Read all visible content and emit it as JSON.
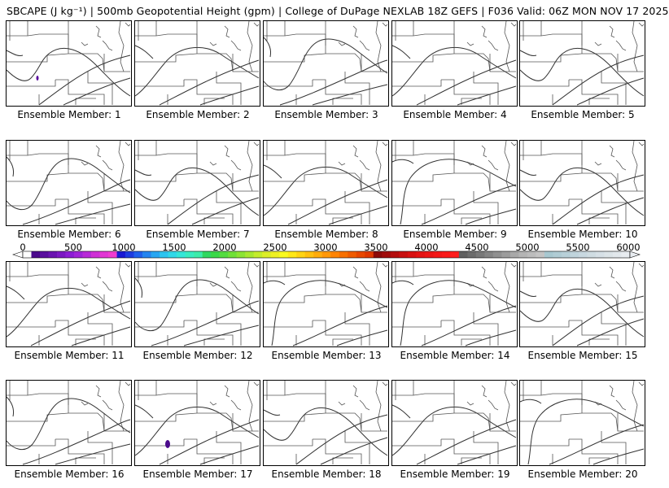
{
  "header": {
    "title": "SBCAPE (J kg⁻¹) | 500mb Geopotential Height (gpm) | College of DuPage NEXLAB 18Z GEFS | F036 Valid: 06Z MON NOV 17 2025"
  },
  "colorbar": {
    "ticks": [
      "0",
      "500",
      "1000",
      "1500",
      "2000",
      "2500",
      "3000",
      "3500",
      "4000",
      "4500",
      "5000",
      "5500",
      "6000"
    ],
    "colors": [
      "#ffffff",
      "#4b0a8c",
      "#5a0f9e",
      "#6a14b0",
      "#7b19c2",
      "#8c1ed4",
      "#a024d8",
      "#b82ad8",
      "#cf30d6",
      "#e236d4",
      "#f03cd0",
      "#1a1ad4",
      "#1e3ce0",
      "#2060ec",
      "#2484f0",
      "#28a6f2",
      "#2cc4f0",
      "#30d8e8",
      "#34e6d8",
      "#38ecc0",
      "#3cecaa",
      "#30d860",
      "#3ad848",
      "#54dc40",
      "#70e038",
      "#8ce434",
      "#a8e830",
      "#c4ec2c",
      "#dcee28",
      "#eef024",
      "#fafa20",
      "#ffe818",
      "#ffd414",
      "#ffc010",
      "#ffac0c",
      "#ff9808",
      "#ff8404",
      "#f87000",
      "#f05c00",
      "#e84800",
      "#e03800",
      "#8c0a0a",
      "#a00c0c",
      "#b40e0e",
      "#c81010",
      "#d81212",
      "#e41414",
      "#ec1616",
      "#f41818",
      "#fa1a1a",
      "#ff1c1c",
      "#606060",
      "#6c6c6c",
      "#787878",
      "#848484",
      "#909090",
      "#9c9c9c",
      "#a8a8a8",
      "#b4b4b4",
      "#bcbcbc",
      "#c4c4c4",
      "#a8c8d0",
      "#b0ccd4",
      "#b8d0d8",
      "#c0d4dc",
      "#c8d8e0",
      "#cfdce2",
      "#d6e0e6",
      "#dce4e8",
      "#e2e8ec",
      "#e8ecf0"
    ]
  },
  "members": [
    {
      "label": "Ensemble Member: 1",
      "variant": 0,
      "blob": "small"
    },
    {
      "label": "Ensemble Member: 2",
      "variant": 1,
      "blob": "none"
    },
    {
      "label": "Ensemble Member: 3",
      "variant": 2,
      "blob": "none"
    },
    {
      "label": "Ensemble Member: 4",
      "variant": 1,
      "blob": "none"
    },
    {
      "label": "Ensemble Member: 5",
      "variant": 0,
      "blob": "none"
    },
    {
      "label": "Ensemble Member: 6",
      "variant": 2,
      "blob": "none"
    },
    {
      "label": "Ensemble Member: 7",
      "variant": 0,
      "blob": "none"
    },
    {
      "label": "Ensemble Member: 8",
      "variant": 1,
      "blob": "none"
    },
    {
      "label": "Ensemble Member: 9",
      "variant": 3,
      "blob": "none"
    },
    {
      "label": "Ensemble Member: 10",
      "variant": 0,
      "blob": "none"
    },
    {
      "label": "Ensemble Member: 11",
      "variant": 1,
      "blob": "none"
    },
    {
      "label": "Ensemble Member: 12",
      "variant": 2,
      "blob": "none"
    },
    {
      "label": "Ensemble Member: 13",
      "variant": 3,
      "blob": "none"
    },
    {
      "label": "Ensemble Member: 14",
      "variant": 3,
      "blob": "none"
    },
    {
      "label": "Ensemble Member: 15",
      "variant": 0,
      "blob": "none"
    },
    {
      "label": "Ensemble Member: 16",
      "variant": 2,
      "blob": "none"
    },
    {
      "label": "Ensemble Member: 17",
      "variant": 1,
      "blob": "large"
    },
    {
      "label": "Ensemble Member: 18",
      "variant": 0,
      "blob": "none"
    },
    {
      "label": "Ensemble Member: 19",
      "variant": 1,
      "blob": "none"
    },
    {
      "label": "Ensemble Member: 20",
      "variant": 3,
      "blob": "none"
    }
  ]
}
